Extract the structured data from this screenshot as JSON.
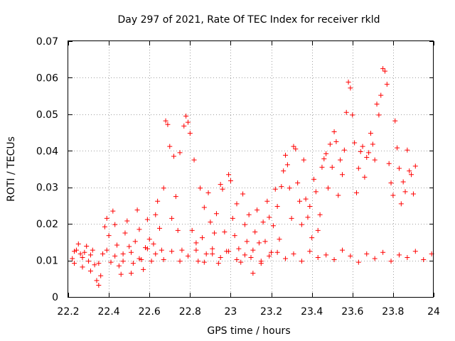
{
  "chart_data": {
    "type": "scatter",
    "title": "Day 297 of 2021, Rate Of TEC Index for receiver rkld",
    "xlabel": "GPS time / hours",
    "ylabel": "ROTI / TECUs",
    "xlim": [
      22.2,
      24
    ],
    "ylim": [
      0,
      0.07
    ],
    "xticks": [
      22.2,
      22.4,
      22.6,
      22.8,
      23,
      23.2,
      23.4,
      23.6,
      23.8,
      24
    ],
    "xtick_labels": [
      "22.2",
      "22.4",
      "22.6",
      "22.8",
      "23",
      "23.2",
      "23.4",
      "23.6",
      "23.8",
      "24"
    ],
    "yticks": [
      0,
      0.01,
      0.02,
      0.03,
      0.04,
      0.05,
      0.06,
      0.07
    ],
    "ytick_labels": [
      "0",
      "0.01",
      "0.02",
      "0.03",
      "0.04",
      "0.05",
      "0.06",
      "0.07"
    ],
    "grid": true,
    "marker": "+",
    "color": "#ff0000",
    "series": [
      {
        "name": "ROTI",
        "points": [
          [
            22.22,
            0.0105
          ],
          [
            22.23,
            0.0092
          ],
          [
            22.24,
            0.0128
          ],
          [
            22.25,
            0.0145
          ],
          [
            22.26,
            0.0118
          ],
          [
            22.27,
            0.0082
          ],
          [
            22.28,
            0.0122
          ],
          [
            22.29,
            0.0139
          ],
          [
            22.3,
            0.0098
          ],
          [
            22.31,
            0.0071
          ],
          [
            22.32,
            0.0128
          ],
          [
            22.33,
            0.0088
          ],
          [
            22.34,
            0.0045
          ],
          [
            22.35,
            0.0032
          ],
          [
            22.36,
            0.0058
          ],
          [
            22.37,
            0.0118
          ],
          [
            22.38,
            0.0192
          ],
          [
            22.39,
            0.0215
          ],
          [
            22.4,
            0.0168
          ],
          [
            22.41,
            0.0095
          ],
          [
            22.42,
            0.0235
          ],
          [
            22.43,
            0.0198
          ],
          [
            22.44,
            0.0142
          ],
          [
            22.45,
            0.0085
          ],
          [
            22.46,
            0.0062
          ],
          [
            22.47,
            0.0118
          ],
          [
            22.48,
            0.0175
          ],
          [
            22.49,
            0.0208
          ],
          [
            22.5,
            0.0138
          ],
          [
            22.51,
            0.0065
          ],
          [
            22.52,
            0.0092
          ],
          [
            22.53,
            0.0152
          ],
          [
            22.54,
            0.0238
          ],
          [
            22.55,
            0.0185
          ],
          [
            22.56,
            0.0102
          ],
          [
            22.57,
            0.0075
          ],
          [
            22.58,
            0.0135
          ],
          [
            22.59,
            0.0212
          ],
          [
            22.6,
            0.0158
          ],
          [
            22.61,
            0.0098
          ],
          [
            22.62,
            0.0145
          ],
          [
            22.63,
            0.0225
          ],
          [
            22.64,
            0.0262
          ],
          [
            22.65,
            0.0188
          ],
          [
            22.66,
            0.0128
          ],
          [
            22.67,
            0.0298
          ],
          [
            22.68,
            0.0482
          ],
          [
            22.69,
            0.0472
          ],
          [
            22.7,
            0.0412
          ],
          [
            22.71,
            0.0215
          ],
          [
            22.72,
            0.0385
          ],
          [
            22.73,
            0.0275
          ],
          [
            22.74,
            0.0182
          ],
          [
            22.75,
            0.0395
          ],
          [
            22.76,
            0.0128
          ],
          [
            22.77,
            0.0468
          ],
          [
            22.78,
            0.0495
          ],
          [
            22.79,
            0.0478
          ],
          [
            22.8,
            0.0448
          ],
          [
            22.81,
            0.0182
          ],
          [
            22.82,
            0.0375
          ],
          [
            22.83,
            0.0148
          ],
          [
            22.84,
            0.0098
          ],
          [
            22.85,
            0.0298
          ],
          [
            22.86,
            0.0162
          ],
          [
            22.87,
            0.0245
          ],
          [
            22.88,
            0.0118
          ],
          [
            22.89,
            0.0285
          ],
          [
            22.9,
            0.0205
          ],
          [
            22.91,
            0.0132
          ],
          [
            22.92,
            0.0175
          ],
          [
            22.93,
            0.0228
          ],
          [
            22.94,
            0.0092
          ],
          [
            22.95,
            0.0308
          ],
          [
            22.96,
            0.0295
          ],
          [
            22.97,
            0.0178
          ],
          [
            22.98,
            0.0125
          ],
          [
            22.99,
            0.0335
          ],
          [
            23.0,
            0.0318
          ],
          [
            23.01,
            0.0215
          ],
          [
            23.02,
            0.0168
          ],
          [
            23.03,
            0.0255
          ],
          [
            23.04,
            0.0132
          ],
          [
            23.05,
            0.0095
          ],
          [
            23.06,
            0.0282
          ],
          [
            23.07,
            0.0198
          ],
          [
            23.08,
            0.0152
          ],
          [
            23.09,
            0.0225
          ],
          [
            23.1,
            0.0108
          ],
          [
            23.11,
            0.0065
          ],
          [
            23.12,
            0.0178
          ],
          [
            23.13,
            0.0238
          ],
          [
            23.14,
            0.0148
          ],
          [
            23.15,
            0.0092
          ],
          [
            23.16,
            0.0205
          ],
          [
            23.17,
            0.0152
          ],
          [
            23.18,
            0.0262
          ],
          [
            23.19,
            0.0218
          ],
          [
            23.2,
            0.0122
          ],
          [
            23.21,
            0.0195
          ],
          [
            23.22,
            0.0295
          ],
          [
            23.23,
            0.0248
          ],
          [
            23.24,
            0.0158
          ],
          [
            23.25,
            0.0302
          ],
          [
            23.26,
            0.0345
          ],
          [
            23.27,
            0.0388
          ],
          [
            23.28,
            0.0362
          ],
          [
            23.29,
            0.0298
          ],
          [
            23.3,
            0.0215
          ],
          [
            23.31,
            0.0412
          ],
          [
            23.32,
            0.0405
          ],
          [
            23.33,
            0.0312
          ],
          [
            23.34,
            0.0262
          ],
          [
            23.35,
            0.0198
          ],
          [
            23.36,
            0.0375
          ],
          [
            23.37,
            0.0268
          ],
          [
            23.38,
            0.0218
          ],
          [
            23.39,
            0.0248
          ],
          [
            23.4,
            0.0162
          ],
          [
            23.41,
            0.0322
          ],
          [
            23.42,
            0.0288
          ],
          [
            23.43,
            0.0182
          ],
          [
            23.44,
            0.0225
          ],
          [
            23.45,
            0.0355
          ],
          [
            23.46,
            0.0378
          ],
          [
            23.47,
            0.0392
          ],
          [
            23.48,
            0.0298
          ],
          [
            23.49,
            0.0418
          ],
          [
            23.5,
            0.0355
          ],
          [
            23.51,
            0.0452
          ],
          [
            23.52,
            0.0425
          ],
          [
            23.53,
            0.0278
          ],
          [
            23.54,
            0.0375
          ],
          [
            23.55,
            0.0335
          ],
          [
            23.56,
            0.0402
          ],
          [
            23.57,
            0.0505
          ],
          [
            23.58,
            0.0588
          ],
          [
            23.59,
            0.0572
          ],
          [
            23.6,
            0.0498
          ],
          [
            23.61,
            0.0422
          ],
          [
            23.62,
            0.0285
          ],
          [
            23.63,
            0.0352
          ],
          [
            23.64,
            0.0398
          ],
          [
            23.65,
            0.0412
          ],
          [
            23.66,
            0.0328
          ],
          [
            23.67,
            0.0382
          ],
          [
            23.68,
            0.0395
          ],
          [
            23.69,
            0.0448
          ],
          [
            23.7,
            0.0418
          ],
          [
            23.71,
            0.0375
          ],
          [
            23.72,
            0.0528
          ],
          [
            23.73,
            0.0498
          ],
          [
            23.74,
            0.0552
          ],
          [
            23.75,
            0.0625
          ],
          [
            23.76,
            0.0618
          ],
          [
            23.77,
            0.0582
          ],
          [
            23.78,
            0.0365
          ],
          [
            23.79,
            0.0312
          ],
          [
            23.8,
            0.0278
          ],
          [
            23.81,
            0.0482
          ],
          [
            23.82,
            0.0408
          ],
          [
            23.83,
            0.0352
          ],
          [
            23.84,
            0.0255
          ],
          [
            23.85,
            0.0315
          ],
          [
            23.86,
            0.0288
          ],
          [
            23.87,
            0.0402
          ],
          [
            23.88,
            0.0345
          ],
          [
            23.89,
            0.0335
          ],
          [
            23.9,
            0.0282
          ],
          [
            23.91,
            0.0358
          ],
          [
            22.23,
            0.0125
          ],
          [
            22.27,
            0.0108
          ],
          [
            22.31,
            0.0115
          ],
          [
            22.35,
            0.0092
          ],
          [
            22.39,
            0.0128
          ],
          [
            22.43,
            0.0112
          ],
          [
            22.47,
            0.0098
          ],
          [
            22.51,
            0.0122
          ],
          [
            22.55,
            0.0105
          ],
          [
            22.59,
            0.0132
          ],
          [
            22.63,
            0.0118
          ],
          [
            22.67,
            0.0102
          ],
          [
            22.71,
            0.0125
          ],
          [
            22.75,
            0.0098
          ],
          [
            22.79,
            0.0112
          ],
          [
            22.83,
            0.0128
          ],
          [
            22.87,
            0.0095
          ],
          [
            22.91,
            0.0118
          ],
          [
            22.95,
            0.0108
          ],
          [
            22.99,
            0.0125
          ],
          [
            23.03,
            0.0102
          ],
          [
            23.07,
            0.0115
          ],
          [
            23.11,
            0.0128
          ],
          [
            23.15,
            0.0098
          ],
          [
            23.19,
            0.0112
          ],
          [
            23.23,
            0.0122
          ],
          [
            23.27,
            0.0105
          ],
          [
            23.31,
            0.0118
          ],
          [
            23.35,
            0.0098
          ],
          [
            23.39,
            0.0125
          ],
          [
            23.43,
            0.0108
          ],
          [
            23.47,
            0.0115
          ],
          [
            23.51,
            0.0102
          ],
          [
            23.55,
            0.0128
          ],
          [
            23.59,
            0.0112
          ],
          [
            23.63,
            0.0095
          ],
          [
            23.67,
            0.0118
          ],
          [
            23.71,
            0.0105
          ],
          [
            23.75,
            0.0122
          ],
          [
            23.79,
            0.0098
          ],
          [
            23.83,
            0.0115
          ],
          [
            23.87,
            0.0108
          ],
          [
            23.91,
            0.0125
          ],
          [
            23.95,
            0.0102
          ],
          [
            23.99,
            0.0118
          ]
        ]
      }
    ]
  }
}
